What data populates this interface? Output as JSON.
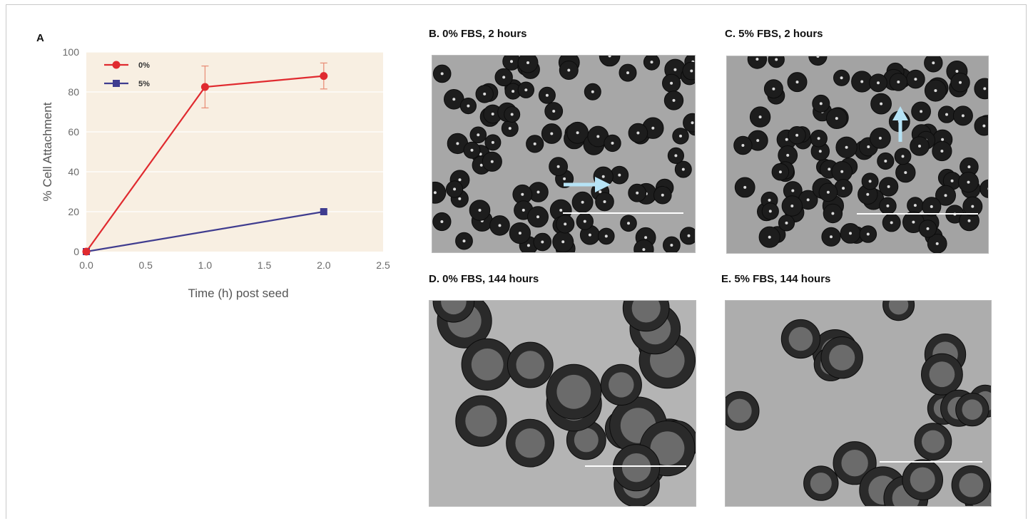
{
  "panels": {
    "a_label": "A",
    "b_title": "B. 0% FBS, 2 hours",
    "c_title": "C. 5% FBS, 2 hours",
    "d_title": "D. 0% FBS, 144 hours",
    "e_title": "E. 5% FBS, 144 hours"
  },
  "colors": {
    "plot_bg": "#f8efe2",
    "series_0": "#e02a2f",
    "series_5": "#3f3c8f",
    "error_bar": "#e9907a",
    "grid": "#ffffff"
  },
  "chart_data": {
    "type": "line",
    "title": "",
    "xlabel": "Time (h) post seed",
    "ylabel": "% Cell Attachment",
    "xlim": [
      0,
      2.5
    ],
    "ylim": [
      0,
      100
    ],
    "xticks": [
      "0.0",
      "0.5",
      "1.0",
      "1.5",
      "2.0",
      "2.5"
    ],
    "yticks": [
      "0",
      "20",
      "40",
      "60",
      "80",
      "100"
    ],
    "grid": true,
    "legend_position": "top-left",
    "series": [
      {
        "name": "0%",
        "marker": "circle",
        "x": [
          0,
          1,
          2
        ],
        "y": [
          0,
          82.5,
          88
        ],
        "err": [
          0,
          10.5,
          6.5
        ]
      },
      {
        "name": "5%",
        "marker": "square",
        "x": [
          0,
          2
        ],
        "y": [
          0,
          20
        ],
        "err": [
          0,
          0
        ]
      }
    ]
  }
}
